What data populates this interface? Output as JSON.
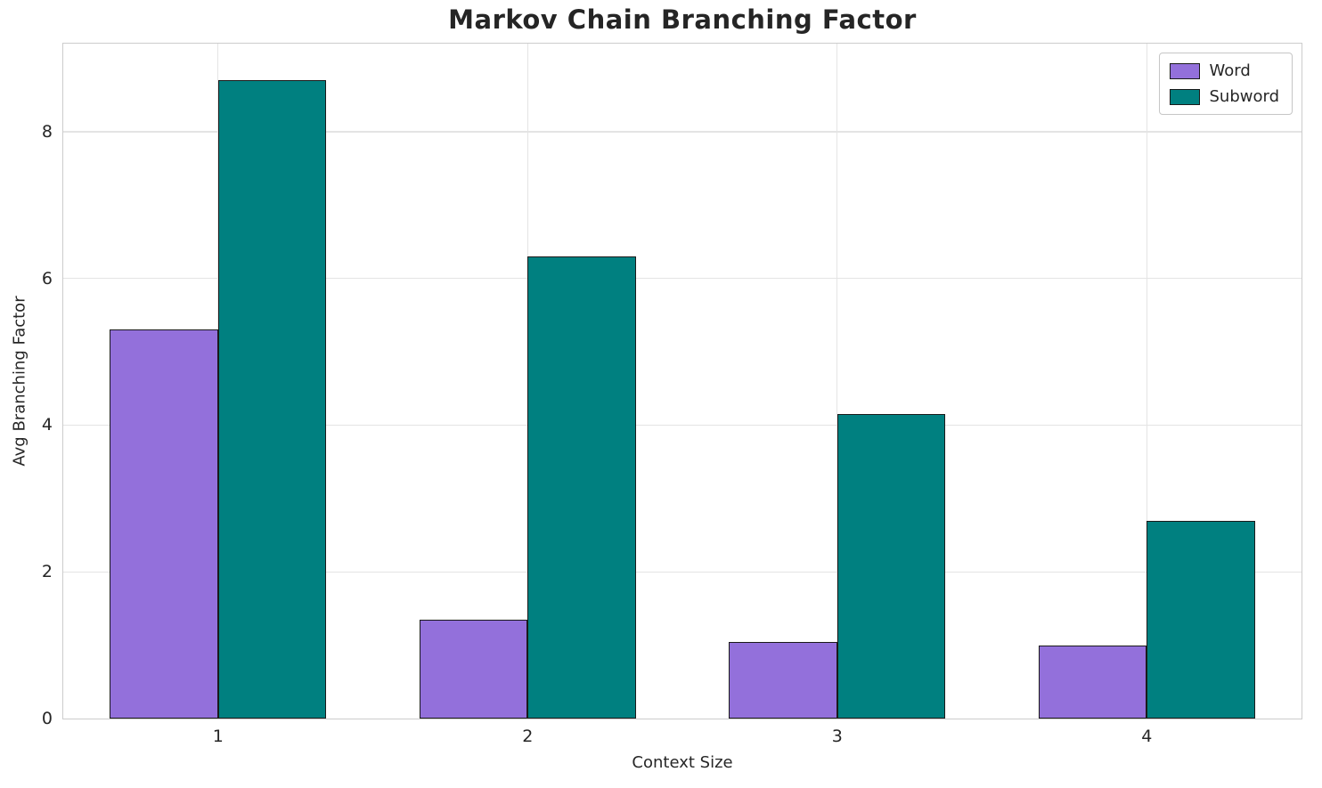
{
  "chart_data": {
    "type": "bar",
    "title": "Markov Chain Branching Factor",
    "xlabel": "Context Size",
    "ylabel": "Avg Branching Factor",
    "categories": [
      "1",
      "2",
      "3",
      "4"
    ],
    "series": [
      {
        "name": "Word",
        "color": "#9370DB",
        "values": [
          5.3,
          1.35,
          1.05,
          1.0
        ]
      },
      {
        "name": "Subword",
        "color": "#008080",
        "values": [
          8.7,
          6.3,
          4.15,
          2.7
        ]
      }
    ],
    "ylim": [
      0,
      9.2
    ],
    "yticks": [
      0,
      2,
      4,
      6,
      8
    ],
    "grid": true,
    "legend_position": "upper right",
    "bar_edge_color": "#1a1a1a",
    "bar_width_fraction": 0.35
  }
}
